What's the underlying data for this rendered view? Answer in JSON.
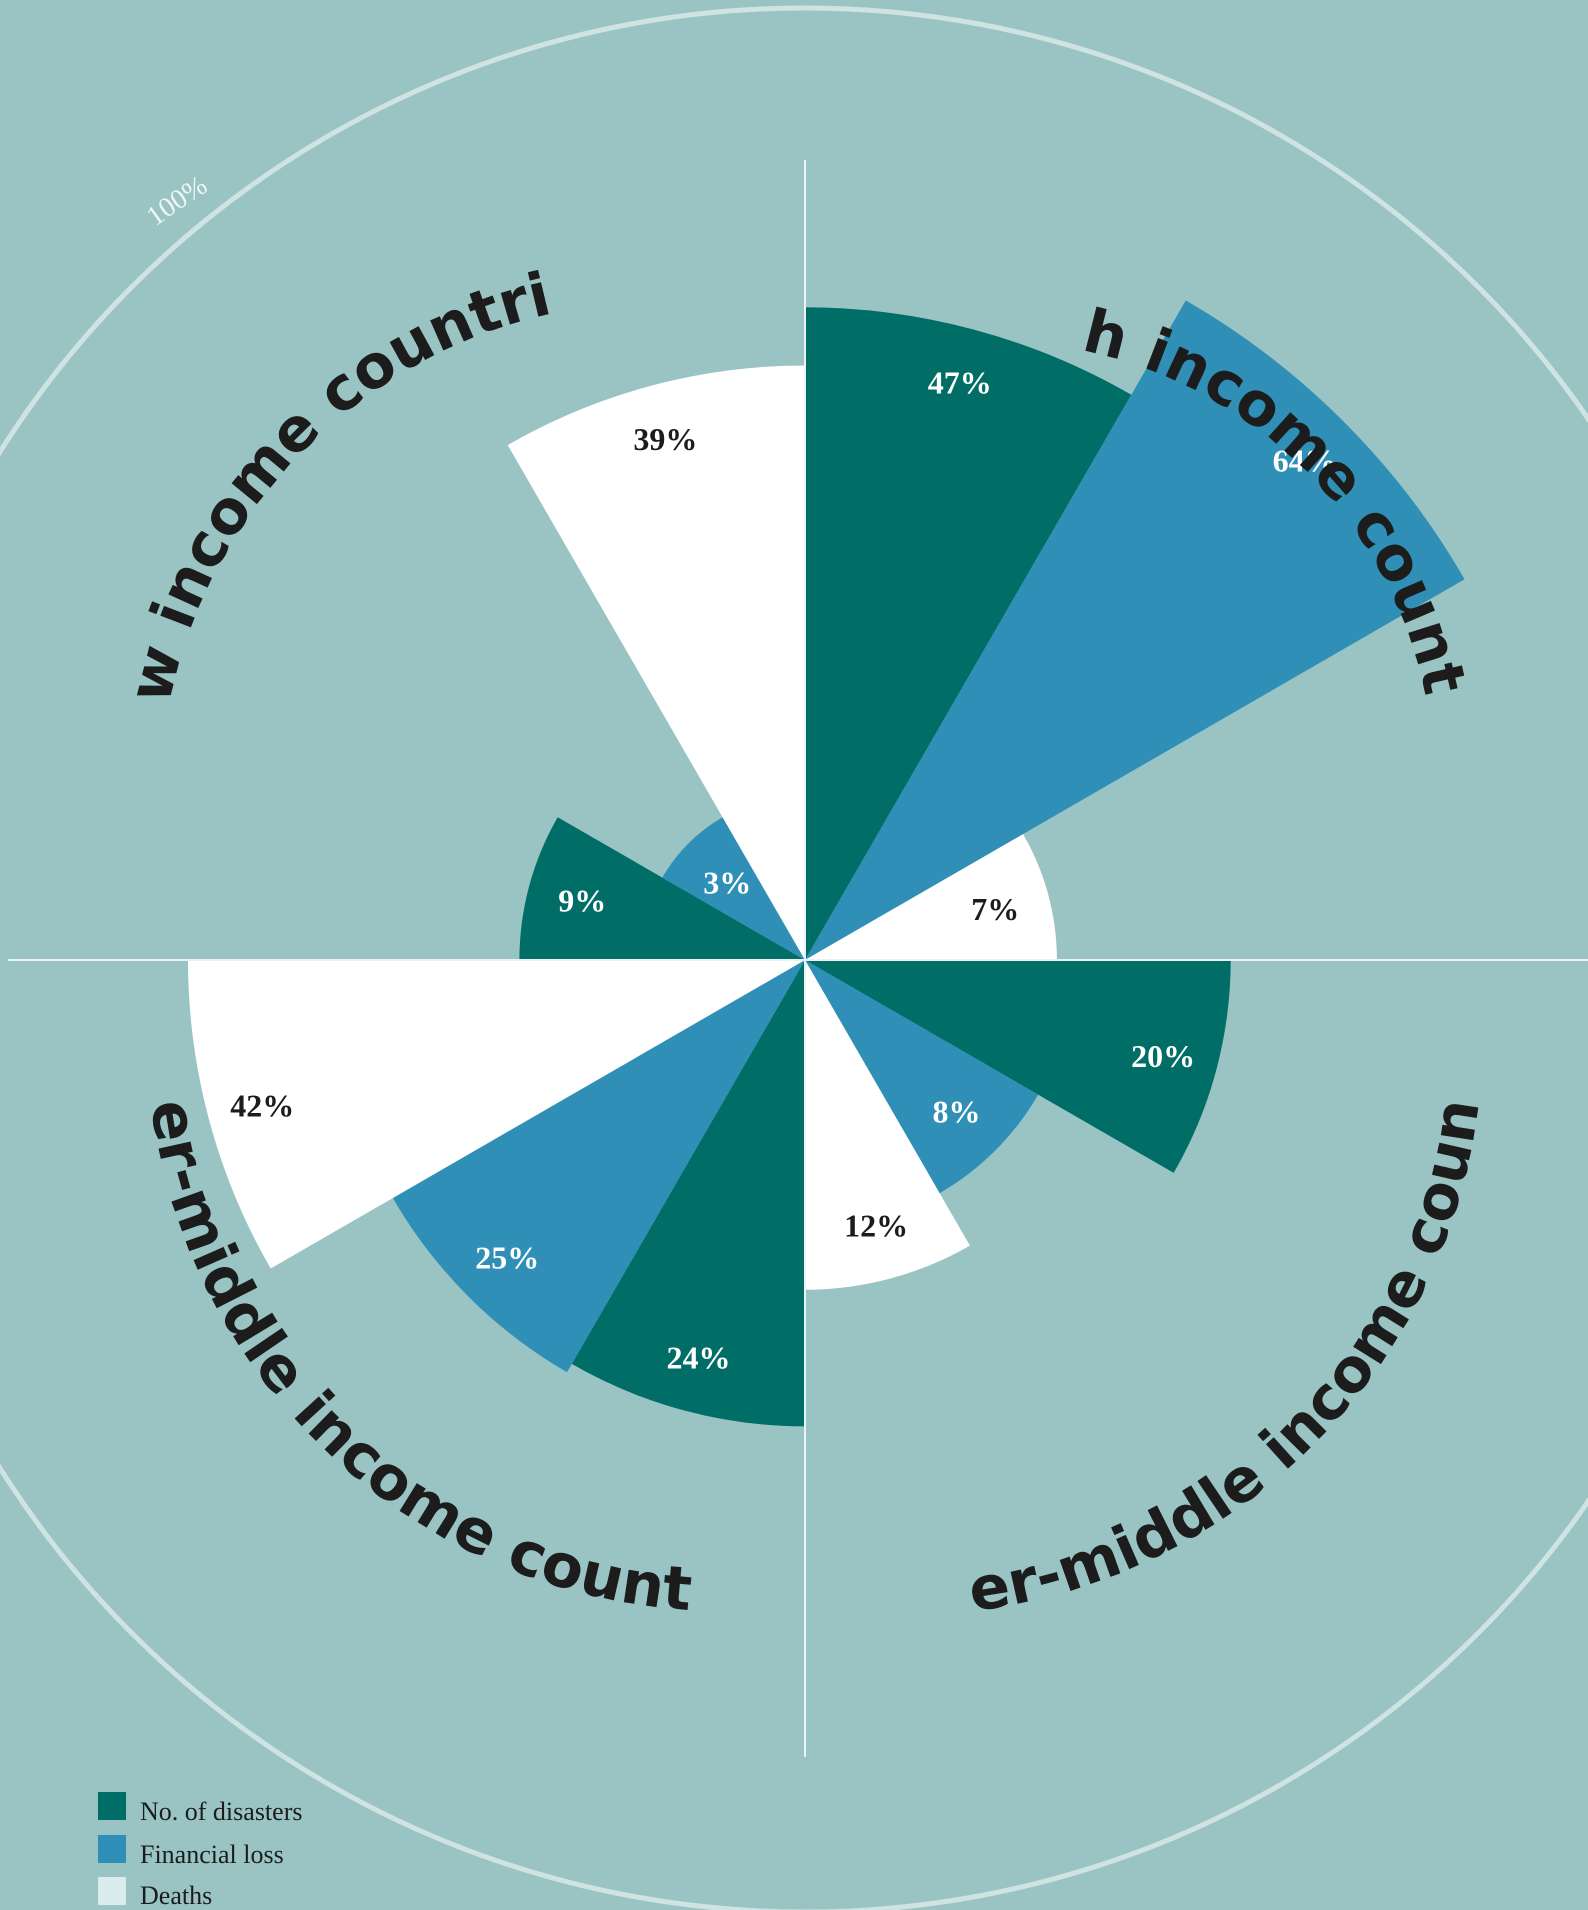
{
  "chart_data": {
    "type": "polar-area",
    "scale_label": "100%",
    "series": [
      {
        "key": "disasters",
        "name": "No. of disasters",
        "color": "#006d66"
      },
      {
        "key": "financial",
        "name": "Financial loss",
        "color": "#2f8fb6"
      },
      {
        "key": "deaths",
        "name": "Deaths",
        "color": "#ffffff"
      }
    ],
    "groups": [
      {
        "name": "High income countries",
        "values": {
          "disasters": 47,
          "financial": 64,
          "deaths": 7
        },
        "labels": {
          "disasters": "47%",
          "financial": "64%",
          "deaths": "7%"
        }
      },
      {
        "name": "Upper-middle income countries",
        "values": {
          "disasters": 20,
          "financial": 8,
          "deaths": 12
        },
        "labels": {
          "disasters": "20%",
          "financial": "8%",
          "deaths": "12%"
        }
      },
      {
        "name": "Lower-middle income countries",
        "values": {
          "disasters": 24,
          "financial": 25,
          "deaths": 42
        },
        "labels": {
          "disasters": "24%",
          "financial": "25%",
          "deaths": "42%"
        }
      },
      {
        "name": "Low income countries",
        "values": {
          "disasters": 9,
          "financial": 3,
          "deaths": 39
        },
        "labels": {
          "disasters": "9%",
          "financial": "3%",
          "deaths": "39%"
        }
      }
    ],
    "legend_position": "bottom-left"
  }
}
